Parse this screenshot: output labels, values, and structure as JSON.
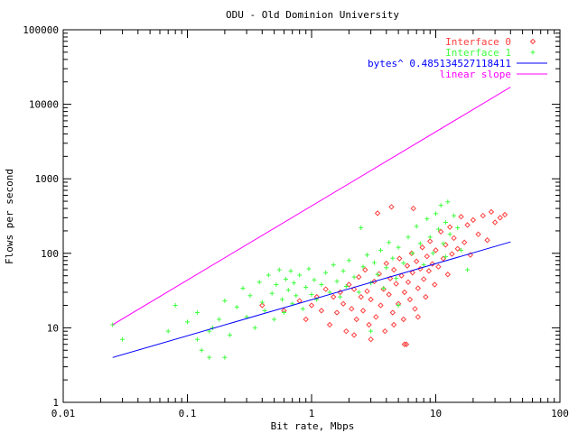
{
  "chart_data": {
    "type": "scatter",
    "title": "ODU - Old Dominion University",
    "xlabel": "Bit rate, Mbps",
    "ylabel": "Flows per second",
    "xscale": "log",
    "yscale": "log",
    "xlim": [
      0.01,
      100
    ],
    "ylim": [
      1,
      100000
    ],
    "x_ticks": [
      "0.01",
      "0.1",
      "1",
      "10",
      "100"
    ],
    "y_ticks": [
      "1",
      "10",
      "100",
      "1000",
      "10000",
      "100000"
    ],
    "grid": false,
    "legend_position": "top-right",
    "series": [
      {
        "name": "Interface 0",
        "kind": "scatter",
        "marker": "diamond",
        "color": "#ff4040",
        "points": [
          [
            0.4,
            20
          ],
          [
            0.6,
            17
          ],
          [
            0.8,
            23
          ],
          [
            0.9,
            13
          ],
          [
            1.0,
            20
          ],
          [
            1.1,
            26
          ],
          [
            1.2,
            17
          ],
          [
            1.3,
            33
          ],
          [
            1.4,
            11
          ],
          [
            1.5,
            26
          ],
          [
            1.6,
            16
          ],
          [
            1.7,
            30
          ],
          [
            1.8,
            21
          ],
          [
            1.9,
            9
          ],
          [
            2.0,
            38
          ],
          [
            2.1,
            18
          ],
          [
            2.2,
            33
          ],
          [
            2.3,
            13
          ],
          [
            2.4,
            48
          ],
          [
            2.5,
            26
          ],
          [
            2.6,
            17
          ],
          [
            2.7,
            60
          ],
          [
            2.8,
            31
          ],
          [
            2.9,
            11
          ],
          [
            3.0,
            24
          ],
          [
            3.2,
            42
          ],
          [
            3.3,
            14
          ],
          [
            3.4,
            345
          ],
          [
            3.5,
            53
          ],
          [
            3.6,
            20
          ],
          [
            3.8,
            33
          ],
          [
            3.9,
            9
          ],
          [
            4.0,
            73
          ],
          [
            4.2,
            28
          ],
          [
            4.3,
            46
          ],
          [
            4.5,
            16
          ],
          [
            4.6,
            60
          ],
          [
            4.8,
            39
          ],
          [
            5.0,
            21
          ],
          [
            5.1,
            85
          ],
          [
            5.3,
            50
          ],
          [
            5.5,
            13
          ],
          [
            5.6,
            30
          ],
          [
            5.8,
            6
          ],
          [
            5.9,
            68
          ],
          [
            6.0,
            41
          ],
          [
            6.2,
            24
          ],
          [
            6.4,
            100
          ],
          [
            6.5,
            55
          ],
          [
            6.8,
            18
          ],
          [
            7.0,
            78
          ],
          [
            7.2,
            34
          ],
          [
            7.5,
            62
          ],
          [
            7.8,
            120
          ],
          [
            8.0,
            45
          ],
          [
            8.3,
            26
          ],
          [
            8.5,
            91
          ],
          [
            8.8,
            58
          ],
          [
            9.0,
            145
          ],
          [
            9.4,
            72
          ],
          [
            9.8,
            38
          ],
          [
            10.0,
            110
          ],
          [
            10.5,
            66
          ],
          [
            11.0,
            195
          ],
          [
            11.5,
            85
          ],
          [
            12.0,
            130
          ],
          [
            12.5,
            52
          ],
          [
            13.0,
            225
          ],
          [
            13.5,
            98
          ],
          [
            14.0,
            160
          ],
          [
            15.0,
            115
          ],
          [
            16.0,
            310
          ],
          [
            17.0,
            140
          ],
          [
            18.0,
            240
          ],
          [
            19.0,
            95
          ],
          [
            20.0,
            280
          ],
          [
            22.0,
            180
          ],
          [
            24.0,
            320
          ],
          [
            26.0,
            150
          ],
          [
            28.0,
            360
          ],
          [
            30.0,
            260
          ],
          [
            33.0,
            300
          ],
          [
            36.0,
            330
          ],
          [
            4.4,
            420
          ],
          [
            6.6,
            400
          ],
          [
            2.2,
            8
          ],
          [
            3.0,
            7
          ],
          [
            4.6,
            11
          ],
          [
            5.6,
            6
          ],
          [
            7.2,
            14
          ]
        ]
      },
      {
        "name": "Interface 1",
        "kind": "scatter",
        "marker": "plus",
        "color": "#40ff40",
        "points": [
          [
            0.025,
            11
          ],
          [
            0.03,
            7
          ],
          [
            0.07,
            9
          ],
          [
            0.08,
            20
          ],
          [
            0.1,
            12
          ],
          [
            0.12,
            7
          ],
          [
            0.13,
            5
          ],
          [
            0.15,
            4
          ],
          [
            0.12,
            16
          ],
          [
            0.16,
            10
          ],
          [
            0.18,
            13
          ],
          [
            0.2,
            23
          ],
          [
            0.22,
            8
          ],
          [
            0.25,
            19
          ],
          [
            0.28,
            34
          ],
          [
            0.3,
            14
          ],
          [
            0.32,
            27
          ],
          [
            0.35,
            10
          ],
          [
            0.38,
            41
          ],
          [
            0.4,
            22
          ],
          [
            0.42,
            17
          ],
          [
            0.45,
            51
          ],
          [
            0.48,
            29
          ],
          [
            0.5,
            13
          ],
          [
            0.52,
            38
          ],
          [
            0.55,
            60
          ],
          [
            0.58,
            24
          ],
          [
            0.6,
            16
          ],
          [
            0.62,
            45
          ],
          [
            0.65,
            32
          ],
          [
            0.68,
            58
          ],
          [
            0.7,
            21
          ],
          [
            0.72,
            40
          ],
          [
            0.75,
            27
          ],
          [
            0.8,
            51
          ],
          [
            0.85,
            18
          ],
          [
            0.9,
            35
          ],
          [
            0.95,
            62
          ],
          [
            1.0,
            28
          ],
          [
            1.05,
            44
          ],
          [
            1.1,
            24
          ],
          [
            1.2,
            38
          ],
          [
            1.3,
            55
          ],
          [
            1.4,
            30
          ],
          [
            1.5,
            70
          ],
          [
            1.6,
            42
          ],
          [
            1.7,
            26
          ],
          [
            1.8,
            58
          ],
          [
            1.9,
            36
          ],
          [
            2.0,
            80
          ],
          [
            2.2,
            48
          ],
          [
            2.4,
            30
          ],
          [
            2.6,
            66
          ],
          [
            2.8,
            95
          ],
          [
            3.0,
            40
          ],
          [
            3.2,
            75
          ],
          [
            3.4,
            52
          ],
          [
            3.6,
            110
          ],
          [
            3.8,
            34
          ],
          [
            4.0,
            64
          ],
          [
            4.2,
            140
          ],
          [
            4.5,
            86
          ],
          [
            4.8,
            46
          ],
          [
            5.0,
            120
          ],
          [
            5.5,
            74
          ],
          [
            6.0,
            165
          ],
          [
            6.5,
            100
          ],
          [
            7.0,
            230
          ],
          [
            7.5,
            135
          ],
          [
            8.0,
            70
          ],
          [
            8.5,
            290
          ],
          [
            9.0,
            165
          ],
          [
            9.5,
            100
          ],
          [
            10.0,
            340
          ],
          [
            10.5,
            210
          ],
          [
            11.0,
            440
          ],
          [
            11.5,
            135
          ],
          [
            12.0,
            260
          ],
          [
            12.5,
            490
          ],
          [
            13.0,
            180
          ],
          [
            14.0,
            320
          ],
          [
            15.0,
            220
          ],
          [
            16.0,
            110
          ],
          [
            0.2,
            4
          ],
          [
            0.15,
            9
          ],
          [
            2.5,
            220
          ],
          [
            3.0,
            9
          ],
          [
            5.0,
            20
          ],
          [
            12.0,
            90
          ],
          [
            18.0,
            60
          ]
        ]
      },
      {
        "name": "bytes^ 0.485134527118411",
        "kind": "line",
        "color": "#0000ff",
        "points": [
          [
            0.025,
            4
          ],
          [
            40,
            142
          ]
        ]
      },
      {
        "name": "linear slope",
        "kind": "line",
        "color": "#ff00ff",
        "points": [
          [
            0.025,
            11
          ],
          [
            40,
            17000
          ]
        ]
      }
    ]
  }
}
